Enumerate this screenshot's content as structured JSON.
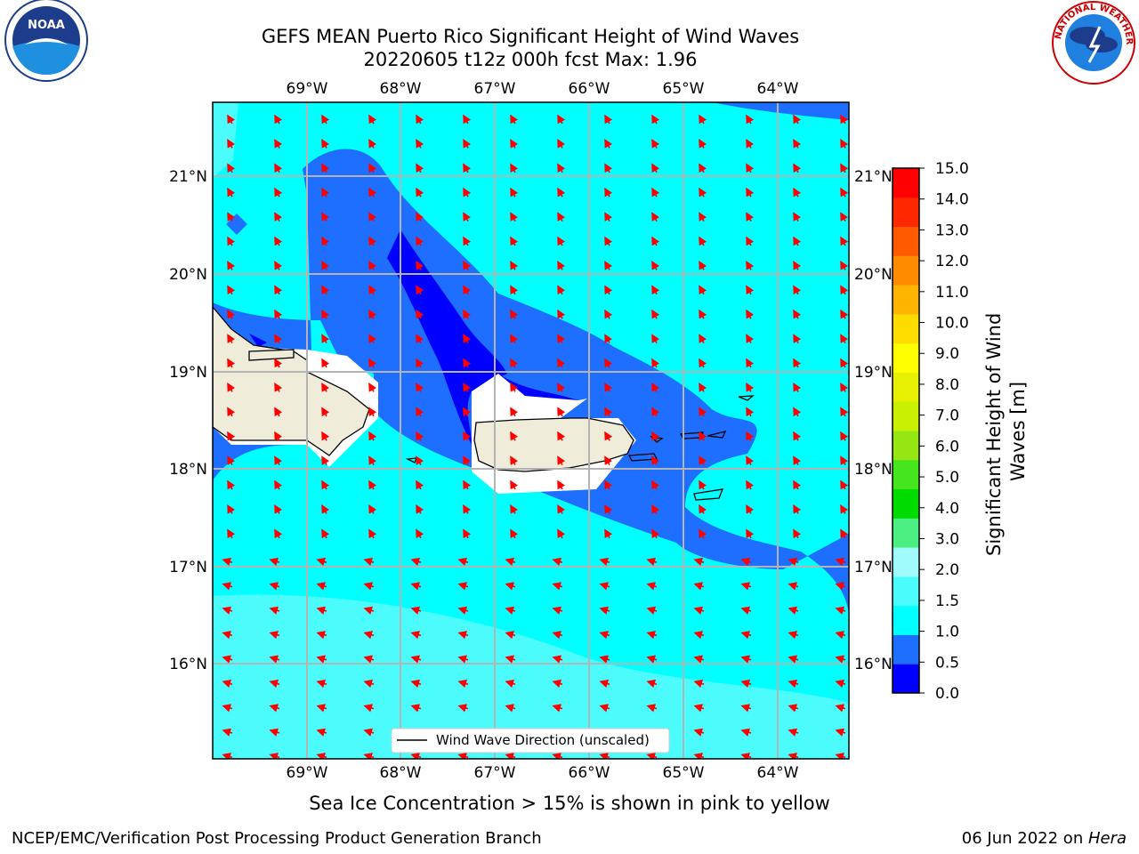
{
  "title": {
    "line1": "GEFS MEAN Puerto Rico Significant Height of Wind Waves",
    "line2": "20220605 t12z 000h fcst   Max: 1.96"
  },
  "logos": {
    "left": {
      "name": "noaa-logo",
      "text": "NOAA"
    },
    "right": {
      "name": "nws-logo",
      "text": "NATIONAL WEATHER SERVICE"
    }
  },
  "map": {
    "lon_labels": [
      "69°W",
      "68°W",
      "67°W",
      "66°W",
      "65°W",
      "64°W"
    ],
    "lat_labels": [
      "21°N",
      "20°N",
      "19°N",
      "18°N",
      "17°N",
      "16°N"
    ],
    "legend_label": "Wind Wave Direction (unscaled)",
    "arrow_color": "#ff0000",
    "land_color": "#efecda",
    "fill_colors": {
      "band_0_0.5": "#0000ff",
      "band_0.5_1.0": "#1e6eff",
      "band_1.0_1.5": "#00ffff",
      "band_1.5_2.0": "#4cfcfc"
    }
  },
  "colorbar": {
    "label": "Significant Height of Wind Waves [m]",
    "ticks": [
      "0.0",
      "0.5",
      "1.0",
      "1.5",
      "2.0",
      "3.0",
      "4.0",
      "5.0",
      "6.0",
      "7.0",
      "8.0",
      "9.0",
      "10.0",
      "11.0",
      "12.0",
      "13.0",
      "14.0",
      "15.0"
    ],
    "colors": [
      "#0000ff",
      "#1e6eff",
      "#00ffff",
      "#4cfcfc",
      "#a0fcfc",
      "#4cf082",
      "#00dc00",
      "#46e61e",
      "#96e614",
      "#c8f000",
      "#e6f000",
      "#ffff00",
      "#ffdc00",
      "#ffb400",
      "#ff8c00",
      "#ff5a00",
      "#ff2800",
      "#ff0000"
    ]
  },
  "notes": {
    "sea_ice": "Sea Ice Concentration > 15% is shown in pink to yellow",
    "footer_left": "NCEP/EMC/Verification Post Processing Product Generation Branch",
    "footer_right_date": "06 Jun 2022 on ",
    "footer_right_host": "Hera"
  }
}
